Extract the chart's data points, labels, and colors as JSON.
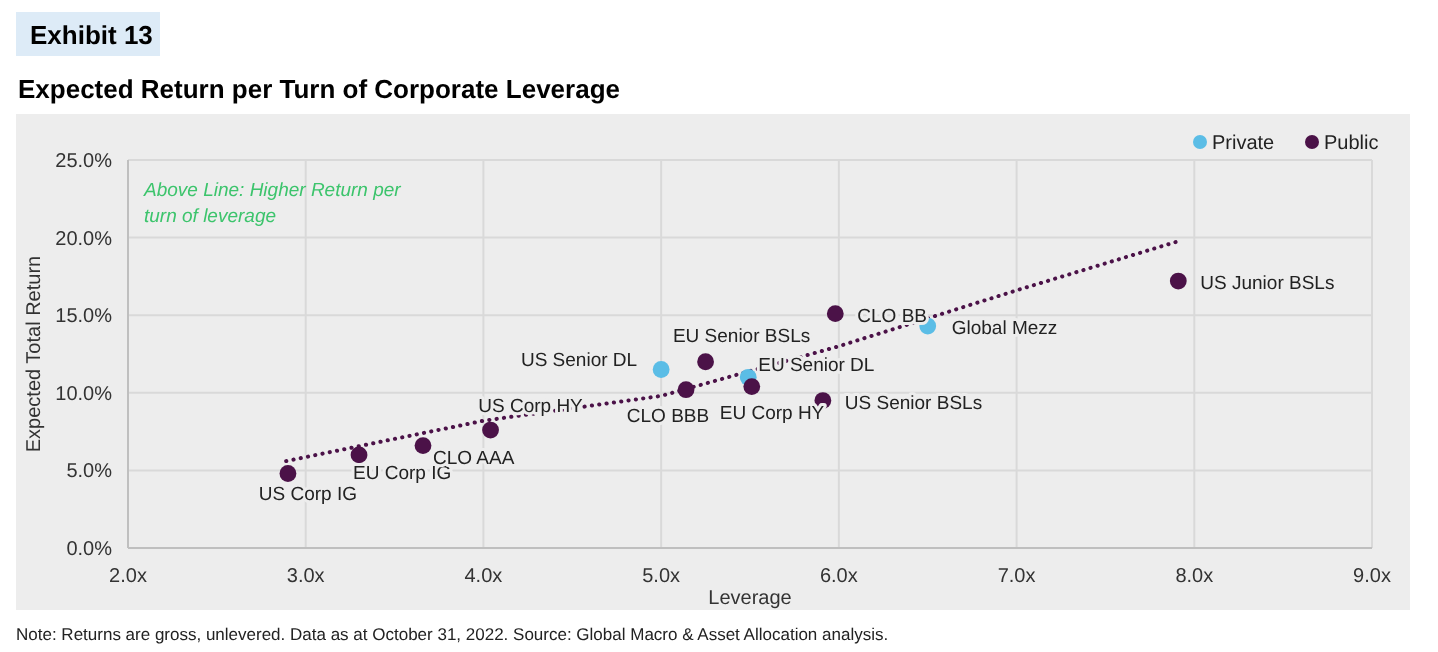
{
  "chart_data": {
    "type": "scatter",
    "title": "Expected Return per Turn of Corporate Leverage",
    "xlabel": "Leverage",
    "ylabel": "Expected Total Return",
    "xlim": [
      2,
      9
    ],
    "xticks": [
      {
        "value": 2,
        "label": "2.0x"
      },
      {
        "value": 3,
        "label": "3.0x"
      },
      {
        "value": 4,
        "label": "4.0x"
      },
      {
        "value": 5,
        "label": "5.0x"
      },
      {
        "value": 6,
        "label": "6.0x"
      },
      {
        "value": 7,
        "label": "7.0x"
      },
      {
        "value": 8,
        "label": "8.0x"
      },
      {
        "value": 9,
        "label": "9.0x"
      }
    ],
    "ylim": [
      0,
      25
    ],
    "yticks": [
      {
        "value": 0,
        "label": "0.0%"
      },
      {
        "value": 5,
        "label": "5.0%"
      },
      {
        "value": 10,
        "label": "10.0%"
      },
      {
        "value": 15,
        "label": "15.0%"
      },
      {
        "value": 20,
        "label": "20.0%"
      },
      {
        "value": 25,
        "label": "25.0%"
      }
    ],
    "grid": true,
    "legend": "top right",
    "marker": "circle",
    "series": [
      {
        "name": "Private",
        "color": "#5bbde6",
        "x": [
          5.0,
          5.49,
          6.5
        ],
        "values": [
          11.5,
          11.0,
          14.3
        ]
      },
      {
        "name": "Public",
        "color": "#4b1248",
        "x": [
          2.9,
          3.3,
          3.66,
          4.04,
          5.25,
          5.14,
          5.51,
          5.91,
          5.98,
          7.91
        ],
        "values": [
          4.8,
          6.0,
          6.6,
          7.6,
          12.0,
          10.2,
          10.4,
          9.5,
          15.1,
          17.2
        ]
      },
      {
        "type": "line",
        "color": "#4b1248",
        "line_style": "dotted",
        "marker": "none",
        "x": [
          2.89,
          4.0,
          5.0,
          6.0,
          7.0,
          7.92
        ],
        "values": [
          5.6,
          8.2,
          9.8,
          13.0,
          16.6,
          19.8
        ]
      }
    ],
    "annotations": [
      {
        "text": "US Corp IG",
        "x": 2.9,
        "y": 4.8
      },
      {
        "text": "EU Corp IG",
        "x": 3.3,
        "y": 6.0
      },
      {
        "text": "CLO AAA",
        "x": 3.66,
        "y": 6.6
      },
      {
        "text": "US Corp HY",
        "x": 4.04,
        "y": 7.6
      },
      {
        "text": "US Senior DL",
        "x": 5.0,
        "y": 11.5
      },
      {
        "text": "EU Senior BSLs",
        "x": 5.25,
        "y": 12.0
      },
      {
        "text": "CLO BBB",
        "x": 5.14,
        "y": 10.2
      },
      {
        "text": "EU Senior DL",
        "x": 5.49,
        "y": 11.0
      },
      {
        "text": "EU Corp HY",
        "x": 5.51,
        "y": 10.4
      },
      {
        "text": "US Senior BSLs",
        "x": 5.91,
        "y": 9.5
      },
      {
        "text": "CLO BB",
        "x": 5.98,
        "y": 15.1
      },
      {
        "text": "Global Mezz",
        "x": 6.5,
        "y": 14.3
      },
      {
        "text": "US Junior BSLs",
        "x": 7.91,
        "y": 17.2
      },
      "Exhibit 13",
      "Above Line: Higher Return per turn of leverage",
      "Note: Returns are gross, unlevered. Data as at October 31, 2022. Source: Global Macro & Asset Allocation analysis."
    ]
  }
}
